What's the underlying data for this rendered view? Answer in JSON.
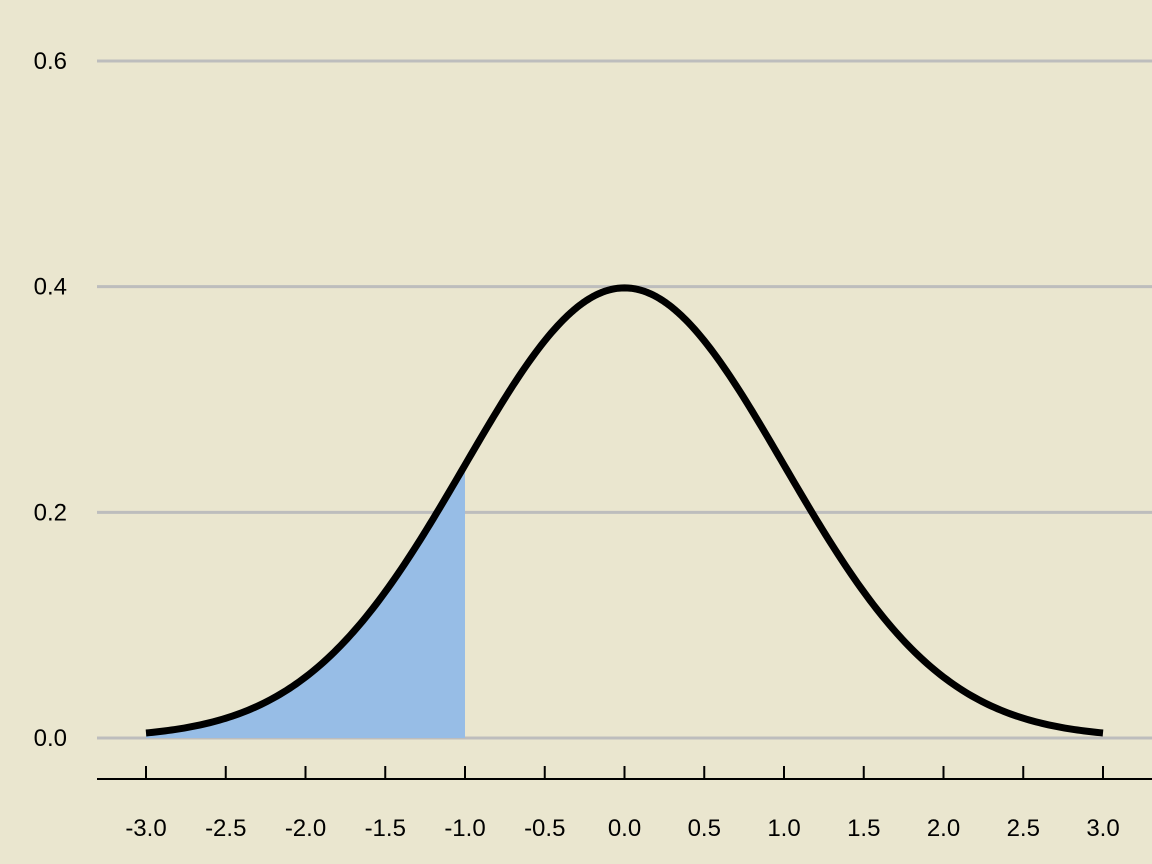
{
  "chart_data": {
    "type": "area",
    "title": "",
    "xlabel": "",
    "ylabel": "",
    "xlim": [
      -3.0,
      3.0
    ],
    "ylim": [
      0.0,
      0.6
    ],
    "x_ticks": [
      "-3.0",
      "-2.5",
      "-2.0",
      "-1.5",
      "-1.0",
      "-0.5",
      "0.0",
      "0.5",
      "1.0",
      "1.5",
      "2.0",
      "2.5",
      "3.0"
    ],
    "y_ticks": [
      "0.0",
      "0.2",
      "0.4",
      "0.6"
    ],
    "grid": "horizontal",
    "series": [
      {
        "kind": "line",
        "color": "#000000",
        "x": [
          -3.0,
          -2.5,
          -2.0,
          -1.5,
          -1.0,
          -0.5,
          0.0,
          0.5,
          1.0,
          1.5,
          2.0,
          2.5,
          3.0
        ],
        "y": [
          0.004,
          0.018,
          0.054,
          0.13,
          0.242,
          0.352,
          0.399,
          0.352,
          0.242,
          0.13,
          0.054,
          0.018,
          0.004
        ]
      },
      {
        "kind": "shaded-area",
        "color": "#97BDE6",
        "x": [
          -3.0,
          -2.5,
          -2.0,
          -1.5,
          -1.0
        ],
        "y": [
          0.004,
          0.018,
          0.054,
          0.13,
          0.242
        ]
      }
    ]
  }
}
